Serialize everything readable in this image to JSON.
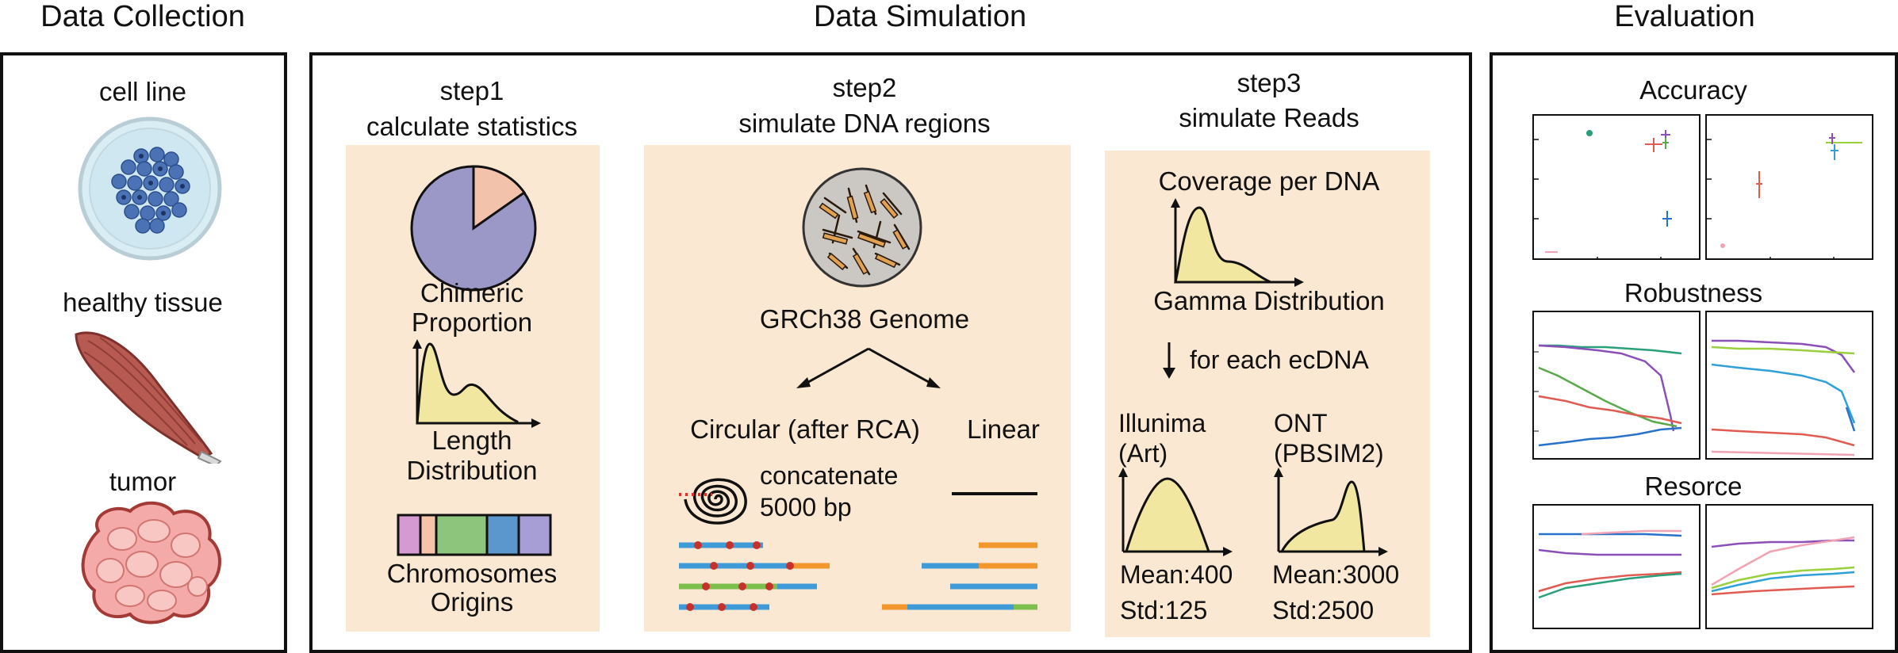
{
  "sections": {
    "collection": "Data Collection",
    "simulation": "Data Simulation",
    "evaluation": "Evaluation"
  },
  "collection": {
    "cell_line": "cell line",
    "healthy_tissue": "healthy tissue",
    "tumor": "tumor"
  },
  "step1": {
    "title": "step1",
    "subtitle": "calculate statistics",
    "chimeric_line1": "Chimeric",
    "chimeric_line2": "Proportion",
    "length_line1": "Length",
    "length_line2": "Distribution",
    "origins_line1": "Chromosomes",
    "origins_line2": "Origins"
  },
  "step2": {
    "title": "step2",
    "subtitle": "simulate DNA regions",
    "genome": "GRCh38 Genome",
    "circular": "Circular (after RCA)",
    "linear": "Linear",
    "concat_line1": "concatenate",
    "concat_line2": "5000 bp"
  },
  "step3": {
    "title": "step3",
    "subtitle": "simulate Reads",
    "coverage": "Coverage per DNA",
    "gamma": "Gamma Distribution",
    "for_each": "for each ecDNA",
    "illumina_line1": "Illunima",
    "illumina_line2": "(Art)",
    "ont_line1": "ONT",
    "ont_line2": "(PBSIM2)",
    "illumina_mean": "Mean:400",
    "illumina_std": "Std:125",
    "ont_mean": "Mean:3000",
    "ont_std": "Std:2500"
  },
  "evaluation": {
    "accuracy": "Accuracy",
    "robustness": "Robustness",
    "resource": "Resorce"
  },
  "colors": {
    "panel_bg": "#fbe8d3",
    "pie_main": "#9b98c8",
    "pie_slice": "#f2c3aa",
    "curve_fill": "#f2e7a1",
    "read_blue": "#3f9ad8",
    "read_orange": "#f2962e",
    "read_green": "#7cbf4d",
    "dot_red": "#c8302a"
  },
  "origin_colors": [
    "#d59ad1",
    "#f4c3a8",
    "#8cc57b",
    "#5b97cc",
    "#a89ed6"
  ]
}
